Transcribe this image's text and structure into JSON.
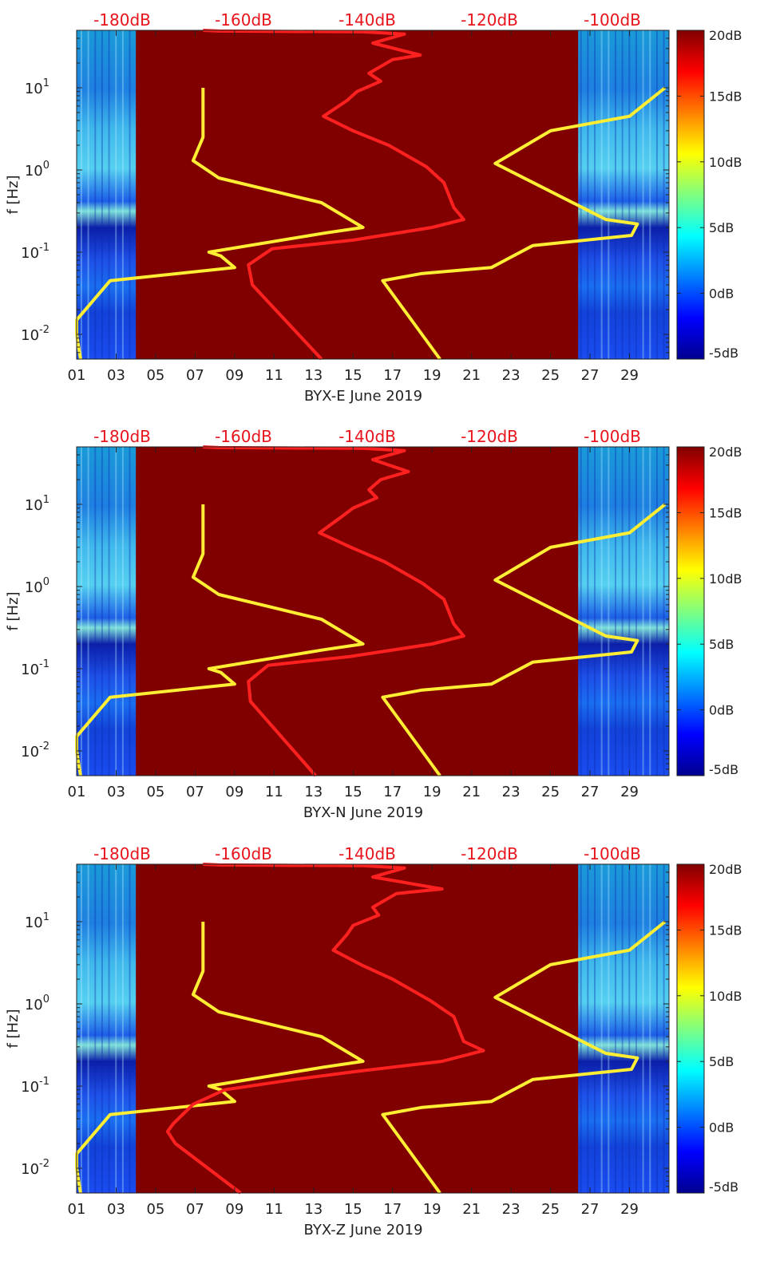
{
  "chart_data": [
    {
      "type": "heatmap",
      "xlabel": "BYX-E June 2019",
      "ylabel": "f [Hz]",
      "x_ticks": [
        "01",
        "03",
        "05",
        "07",
        "09",
        "11",
        "13",
        "15",
        "17",
        "19",
        "21",
        "23",
        "25",
        "27",
        "29"
      ],
      "x_range": [
        1,
        31
      ],
      "y_scale": "log",
      "y_range": [
        0.005,
        50
      ],
      "y_ticks": [
        {
          "base": "10",
          "exp": "-2"
        },
        {
          "base": "10",
          "exp": "-1"
        },
        {
          "base": "10",
          "exp": "0"
        },
        {
          "base": "10",
          "exp": "1"
        }
      ],
      "top_ticks": [
        "-180dB",
        "-160dB",
        "-140dB",
        "-120dB",
        "-100dB"
      ],
      "colorbar": {
        "ticks": [
          "-5dB",
          "0dB",
          "5dB",
          "10dB",
          "15dB",
          "20dB"
        ],
        "range": [
          -5,
          20
        ]
      },
      "data_gap_days": [
        4.0,
        26.4
      ],
      "series": [
        {
          "color": "#ffee33",
          "points": [
            [
              7.4,
              10
            ],
            [
              7.4,
              6
            ],
            [
              7.4,
              2.5
            ],
            [
              6.9,
              1.3
            ],
            [
              8.2,
              0.8
            ],
            [
              13.4,
              0.4
            ],
            [
              15.5,
              0.2
            ],
            [
              13.5,
              0.17
            ],
            [
              7.7,
              0.1
            ],
            [
              8.3,
              0.09
            ],
            [
              9.0,
              0.065
            ],
            [
              2.7,
              0.045
            ],
            [
              1.0,
              0.015
            ],
            [
              1.0,
              0.01
            ],
            [
              1.2,
              0.005
            ]
          ]
        },
        {
          "color": "#ff2020",
          "points": [
            [
              7.4,
              50
            ],
            [
              8.2,
              49
            ],
            [
              15.5,
              48
            ],
            [
              17.6,
              45
            ],
            [
              16.0,
              35
            ],
            [
              18.4,
              25
            ],
            [
              17.0,
              22
            ],
            [
              15.8,
              15
            ],
            [
              16.4,
              12
            ],
            [
              15.2,
              9
            ],
            [
              14.7,
              7
            ],
            [
              13.5,
              4.5
            ],
            [
              15.0,
              3
            ],
            [
              16.8,
              2
            ],
            [
              18.7,
              1.1
            ],
            [
              19.6,
              0.7
            ],
            [
              20.1,
              0.35
            ],
            [
              20.6,
              0.25
            ],
            [
              19.0,
              0.2
            ],
            [
              15.0,
              0.14
            ],
            [
              10.9,
              0.11
            ],
            [
              9.7,
              0.07
            ],
            [
              9.9,
              0.04
            ],
            [
              13.4,
              0.005
            ]
          ]
        },
        {
          "color": "#ffee33",
          "points": [
            [
              19.4,
              0.005
            ],
            [
              16.5,
              0.045
            ],
            [
              18.5,
              0.055
            ],
            [
              22.0,
              0.065
            ],
            [
              24.1,
              0.12
            ],
            [
              29.1,
              0.16
            ],
            [
              29.4,
              0.22
            ],
            [
              27.8,
              0.25
            ],
            [
              22.2,
              1.2
            ],
            [
              25.0,
              3.0
            ],
            [
              29.0,
              4.5
            ],
            [
              30.8,
              10
            ]
          ]
        }
      ]
    },
    {
      "type": "heatmap",
      "xlabel": "BYX-N June 2019",
      "ylabel": "f [Hz]",
      "x_ticks": [
        "01",
        "03",
        "05",
        "07",
        "09",
        "11",
        "13",
        "15",
        "17",
        "19",
        "21",
        "23",
        "25",
        "27",
        "29"
      ],
      "x_range": [
        1,
        31
      ],
      "y_scale": "log",
      "y_range": [
        0.005,
        50
      ],
      "y_ticks": [
        {
          "base": "10",
          "exp": "-2"
        },
        {
          "base": "10",
          "exp": "-1"
        },
        {
          "base": "10",
          "exp": "0"
        },
        {
          "base": "10",
          "exp": "1"
        }
      ],
      "top_ticks": [
        "-180dB",
        "-160dB",
        "-140dB",
        "-120dB",
        "-100dB"
      ],
      "colorbar": {
        "ticks": [
          "-5dB",
          "0dB",
          "5dB",
          "10dB",
          "15dB",
          "20dB"
        ],
        "range": [
          -5,
          20
        ]
      },
      "data_gap_days": [
        4.0,
        26.4
      ],
      "series": [
        {
          "color": "#ffee33",
          "points": [
            [
              7.4,
              10
            ],
            [
              7.4,
              6
            ],
            [
              7.4,
              2.5
            ],
            [
              6.9,
              1.3
            ],
            [
              8.2,
              0.8
            ],
            [
              13.4,
              0.4
            ],
            [
              15.5,
              0.2
            ],
            [
              13.5,
              0.17
            ],
            [
              7.7,
              0.1
            ],
            [
              8.3,
              0.09
            ],
            [
              9.0,
              0.065
            ],
            [
              2.7,
              0.045
            ],
            [
              1.0,
              0.015
            ],
            [
              1.0,
              0.01
            ],
            [
              1.2,
              0.005
            ]
          ]
        },
        {
          "color": "#ff2020",
          "points": [
            [
              7.4,
              50
            ],
            [
              8.2,
              49
            ],
            [
              15.5,
              48
            ],
            [
              17.6,
              45
            ],
            [
              16.0,
              35
            ],
            [
              17.8,
              25
            ],
            [
              16.4,
              20
            ],
            [
              15.8,
              15
            ],
            [
              16.2,
              12
            ],
            [
              15.0,
              9
            ],
            [
              14.4,
              7
            ],
            [
              13.3,
              4.5
            ],
            [
              14.9,
              3
            ],
            [
              16.6,
              2
            ],
            [
              18.5,
              1.1
            ],
            [
              19.6,
              0.7
            ],
            [
              20.1,
              0.35
            ],
            [
              20.6,
              0.25
            ],
            [
              19.0,
              0.2
            ],
            [
              14.8,
              0.14
            ],
            [
              10.7,
              0.11
            ],
            [
              9.7,
              0.07
            ],
            [
              9.8,
              0.04
            ],
            [
              13.1,
              0.005
            ]
          ]
        },
        {
          "color": "#ffee33",
          "points": [
            [
              19.4,
              0.005
            ],
            [
              16.5,
              0.045
            ],
            [
              18.5,
              0.055
            ],
            [
              22.0,
              0.065
            ],
            [
              24.1,
              0.12
            ],
            [
              29.1,
              0.16
            ],
            [
              29.4,
              0.22
            ],
            [
              27.8,
              0.25
            ],
            [
              22.2,
              1.2
            ],
            [
              25.0,
              3.0
            ],
            [
              29.0,
              4.5
            ],
            [
              30.8,
              10
            ]
          ]
        }
      ]
    },
    {
      "type": "heatmap",
      "xlabel": "BYX-Z June 2019",
      "ylabel": "f [Hz]",
      "x_ticks": [
        "01",
        "03",
        "05",
        "07",
        "09",
        "11",
        "13",
        "15",
        "17",
        "19",
        "21",
        "23",
        "25",
        "27",
        "29"
      ],
      "x_range": [
        1,
        31
      ],
      "y_scale": "log",
      "y_range": [
        0.005,
        50
      ],
      "y_ticks": [
        {
          "base": "10",
          "exp": "-2"
        },
        {
          "base": "10",
          "exp": "-1"
        },
        {
          "base": "10",
          "exp": "0"
        },
        {
          "base": "10",
          "exp": "1"
        }
      ],
      "top_ticks": [
        "-180dB",
        "-160dB",
        "-140dB",
        "-120dB",
        "-100dB"
      ],
      "colorbar": {
        "ticks": [
          "-5dB",
          "0dB",
          "5dB",
          "10dB",
          "15dB",
          "20dB"
        ],
        "range": [
          -5,
          20
        ]
      },
      "data_gap_days": [
        4.0,
        26.4
      ],
      "series": [
        {
          "color": "#ffee33",
          "points": [
            [
              7.4,
              10
            ],
            [
              7.4,
              6
            ],
            [
              7.4,
              2.5
            ],
            [
              6.9,
              1.3
            ],
            [
              8.2,
              0.8
            ],
            [
              13.4,
              0.4
            ],
            [
              15.5,
              0.2
            ],
            [
              13.5,
              0.17
            ],
            [
              7.7,
              0.1
            ],
            [
              8.3,
              0.09
            ],
            [
              9.0,
              0.065
            ],
            [
              2.7,
              0.045
            ],
            [
              1.0,
              0.015
            ],
            [
              1.0,
              0.01
            ],
            [
              1.2,
              0.005
            ]
          ]
        },
        {
          "color": "#ff2020",
          "points": [
            [
              7.4,
              50
            ],
            [
              8.2,
              49
            ],
            [
              15.5,
              48
            ],
            [
              17.6,
              45
            ],
            [
              16.0,
              35
            ],
            [
              19.5,
              25
            ],
            [
              17.2,
              22
            ],
            [
              16.0,
              15
            ],
            [
              16.3,
              12
            ],
            [
              15.0,
              9
            ],
            [
              14.7,
              7
            ],
            [
              14.0,
              4.5
            ],
            [
              15.4,
              3
            ],
            [
              17.0,
              2
            ],
            [
              18.9,
              1.1
            ],
            [
              20.1,
              0.7
            ],
            [
              20.6,
              0.35
            ],
            [
              21.6,
              0.27
            ],
            [
              19.5,
              0.2
            ],
            [
              15.1,
              0.15
            ],
            [
              12.0,
              0.12
            ],
            [
              8.5,
              0.09
            ],
            [
              6.9,
              0.06
            ],
            [
              5.9,
              0.035
            ],
            [
              5.6,
              0.028
            ],
            [
              6.0,
              0.02
            ],
            [
              9.3,
              0.005
            ]
          ]
        },
        {
          "color": "#ffee33",
          "points": [
            [
              19.4,
              0.005
            ],
            [
              16.5,
              0.045
            ],
            [
              18.5,
              0.055
            ],
            [
              22.0,
              0.065
            ],
            [
              24.1,
              0.12
            ],
            [
              29.1,
              0.16
            ],
            [
              29.4,
              0.22
            ],
            [
              27.8,
              0.25
            ],
            [
              22.2,
              1.2
            ],
            [
              25.0,
              3.0
            ],
            [
              29.0,
              4.5
            ],
            [
              30.8,
              10
            ]
          ]
        }
      ]
    }
  ]
}
